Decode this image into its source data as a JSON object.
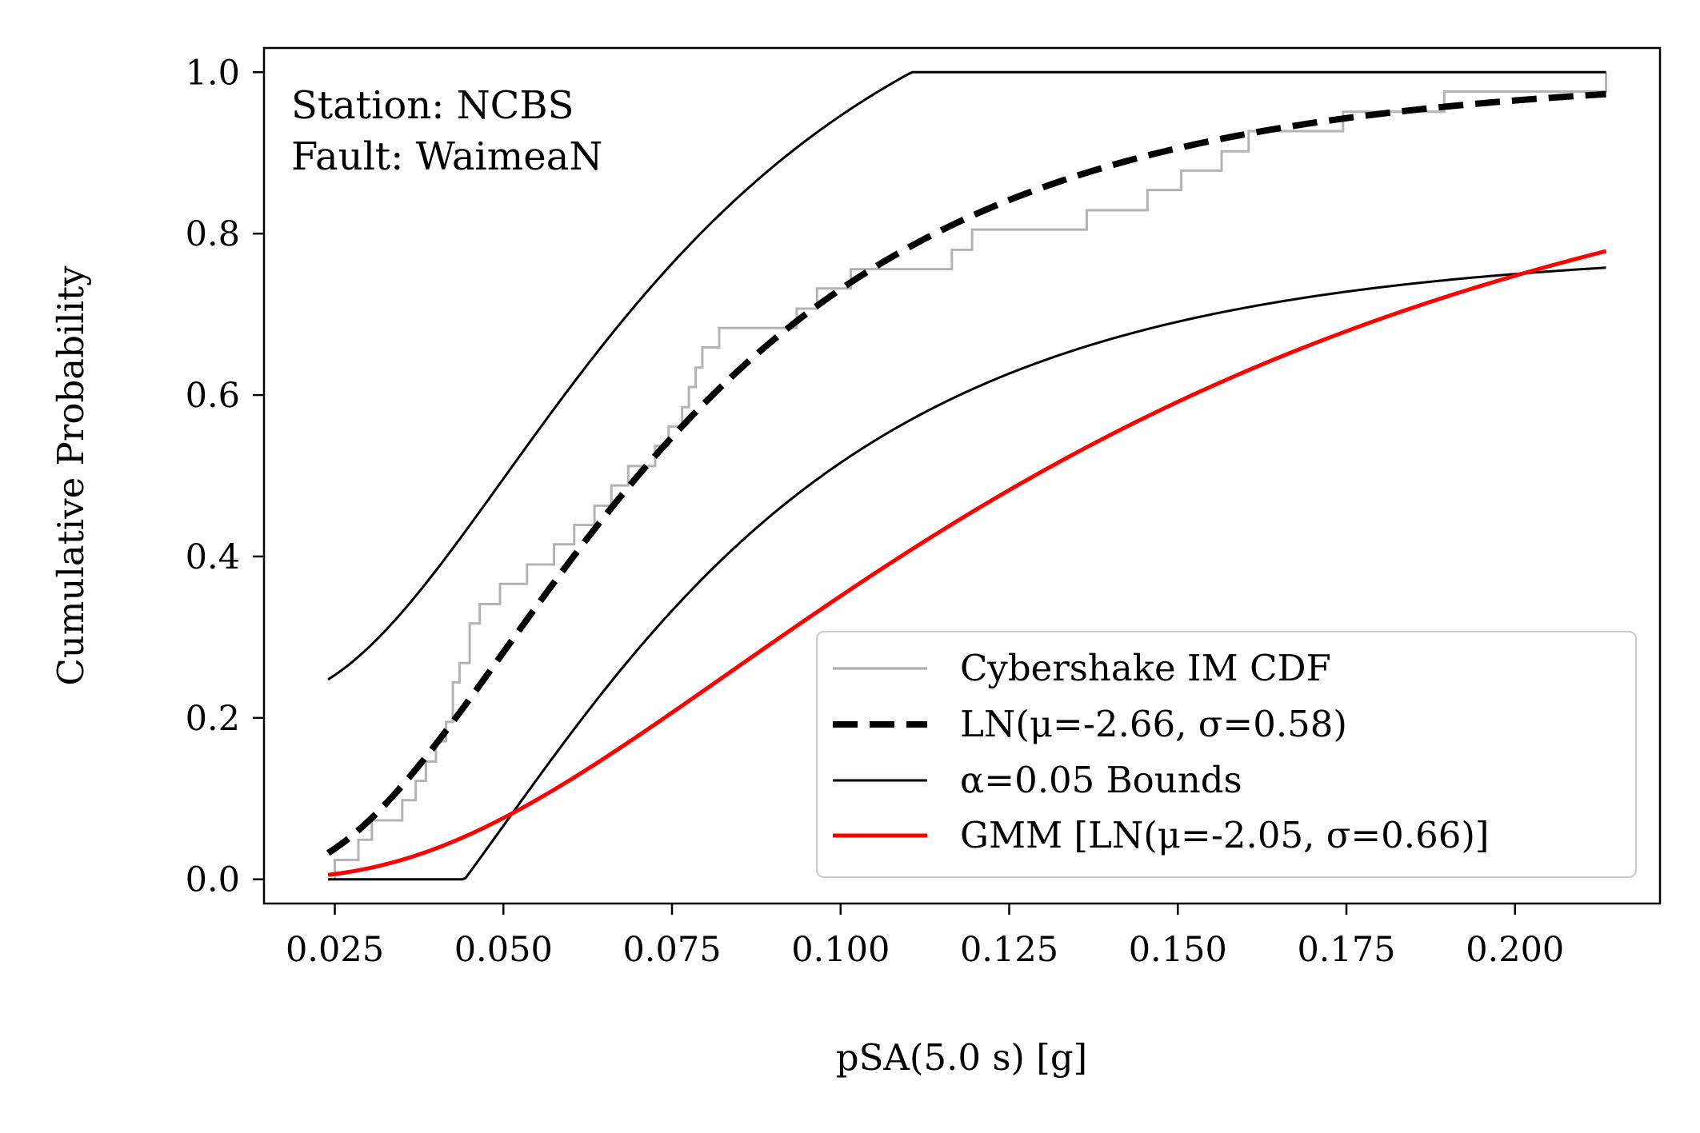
{
  "chart_data": {
    "type": "line",
    "xlabel": "pSA(5.0 s) [g]",
    "ylabel": "Cumulative Probability",
    "xlim": [
      0.0145,
      0.2215
    ],
    "ylim": [
      -0.03,
      1.03
    ],
    "xticks": [
      0.025,
      0.05,
      0.075,
      0.1,
      0.125,
      0.15,
      0.175,
      0.2
    ],
    "xtick_labels": [
      "0.025",
      "0.050",
      "0.075",
      "0.100",
      "0.125",
      "0.150",
      "0.175",
      "0.200"
    ],
    "yticks": [
      0.0,
      0.2,
      0.4,
      0.6,
      0.8,
      1.0
    ],
    "ytick_labels": [
      "0.0",
      "0.2",
      "0.4",
      "0.6",
      "0.8",
      "1.0"
    ],
    "grid": false,
    "annotation": [
      "Station: NCBS",
      "Fault: WaimeaN"
    ],
    "legend": {
      "position": "lower-right",
      "entries": [
        {
          "label": "Cybershake IM CDF",
          "series": "empirical"
        },
        {
          "label": "LN(μ=-2.66, σ=0.58)",
          "series": "lognormal_fit"
        },
        {
          "label": "α=0.05 Bounds",
          "series": "bounds"
        },
        {
          "label": "GMM [LN(μ=-2.05, σ=0.66)]",
          "series": "gmm"
        }
      ]
    },
    "series": [
      {
        "key": "empirical",
        "style": "step",
        "color": "#b3b3b3",
        "x": [
          0.024,
          0.025,
          0.0265,
          0.0285,
          0.0305,
          0.033,
          0.035,
          0.037,
          0.0385,
          0.04,
          0.0415,
          0.0425,
          0.0435,
          0.045,
          0.0465,
          0.0495,
          0.0535,
          0.0575,
          0.0605,
          0.0635,
          0.066,
          0.0685,
          0.0705,
          0.0725,
          0.0745,
          0.0765,
          0.0775,
          0.0785,
          0.0795,
          0.081,
          0.082,
          0.0835,
          0.0935,
          0.0965,
          0.1015,
          0.1055,
          0.1165,
          0.1195,
          0.1235,
          0.1365,
          0.1455,
          0.1505,
          0.1565,
          0.1605,
          0.1615,
          0.1745,
          0.1895,
          0.1995,
          0.2085,
          0.2135
        ],
        "y": [
          0.0,
          0.024,
          0.024,
          0.049,
          0.073,
          0.073,
          0.098,
          0.122,
          0.146,
          0.171,
          0.195,
          0.244,
          0.268,
          0.317,
          0.341,
          0.366,
          0.39,
          0.415,
          0.439,
          0.463,
          0.488,
          0.512,
          0.512,
          0.537,
          0.561,
          0.585,
          0.61,
          0.634,
          0.659,
          0.659,
          0.683,
          0.683,
          0.707,
          0.732,
          0.756,
          0.756,
          0.78,
          0.805,
          0.805,
          0.829,
          0.854,
          0.878,
          0.902,
          0.927,
          0.927,
          0.951,
          0.976,
          0.976,
          0.976,
          1.0
        ]
      },
      {
        "key": "lognormal_fit",
        "style": "dashed",
        "color": "#000000",
        "mu": -2.66,
        "sigma": 0.58,
        "x_range": [
          0.024,
          0.2135
        ]
      },
      {
        "key": "bounds",
        "style": "solid-thin",
        "color": "#000000",
        "mu": -2.66,
        "sigma": 0.58,
        "delta": 0.215,
        "x_range": [
          0.024,
          0.2135
        ]
      },
      {
        "key": "gmm",
        "style": "solid",
        "color": "#ff0000",
        "mu": -2.05,
        "sigma": 0.66,
        "x_range": [
          0.024,
          0.2135
        ]
      }
    ]
  }
}
